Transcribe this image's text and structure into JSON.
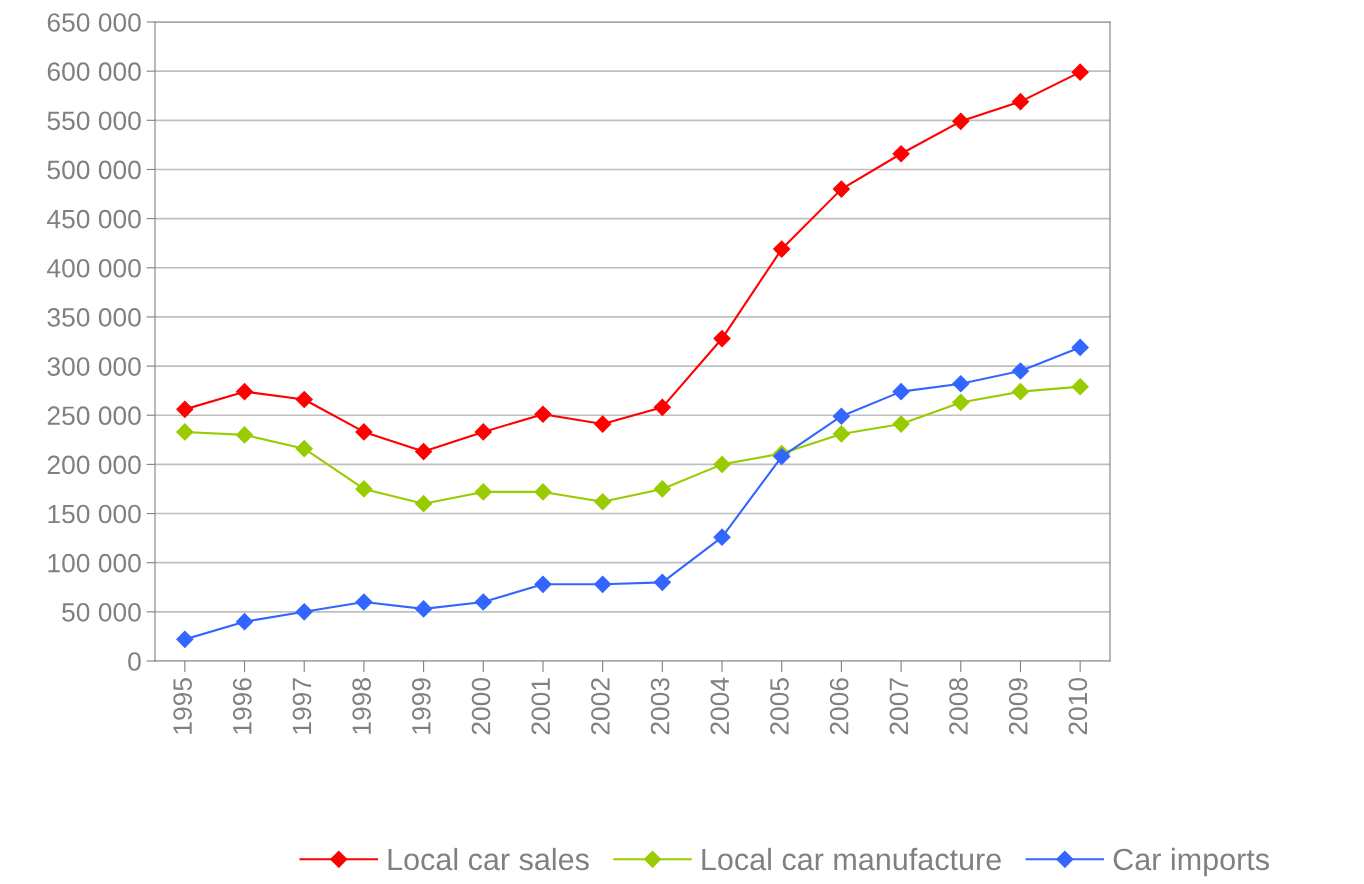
{
  "chart_data": {
    "type": "line",
    "categories": [
      "1995",
      "1996",
      "1997",
      "1998",
      "1999",
      "2000",
      "2001",
      "2002",
      "2003",
      "2004",
      "2005",
      "2006",
      "2007",
      "2008",
      "2009",
      "2010"
    ],
    "series": [
      {
        "name": "Local car sales",
        "color": "#ff0000",
        "values": [
          256000,
          274000,
          266000,
          233000,
          213000,
          233000,
          251000,
          241000,
          258000,
          328000,
          419000,
          480000,
          516000,
          549000,
          569000,
          599000
        ]
      },
      {
        "name": "Local car manufacture",
        "color": "#99cc00",
        "values": [
          233000,
          230000,
          216000,
          175000,
          160000,
          172000,
          172000,
          162000,
          175000,
          200000,
          211000,
          231000,
          241000,
          263000,
          274000,
          279000
        ]
      },
      {
        "name": "Car imports",
        "color": "#3366ff",
        "values": [
          22000,
          40000,
          50000,
          60000,
          53000,
          60000,
          78000,
          78000,
          80000,
          126000,
          208000,
          249000,
          274000,
          282000,
          295000,
          319000
        ]
      }
    ],
    "ylim": [
      0,
      650000
    ],
    "yticks": [
      0,
      {
        "value": 50000,
        "label": "50 000"
      },
      {
        "value": 100000,
        "label": "100 000"
      },
      {
        "value": 150000,
        "label": "150 000"
      },
      {
        "value": 200000,
        "label": "200 000"
      },
      {
        "value": 250000,
        "label": "250 000"
      },
      {
        "value": 300000,
        "label": "300 000"
      },
      {
        "value": 350000,
        "label": "350 000"
      },
      {
        "value": 400000,
        "label": "400 000"
      },
      {
        "value": 450000,
        "label": "450 000"
      },
      {
        "value": 500000,
        "label": "500 000"
      },
      {
        "value": 550000,
        "label": "550 000"
      },
      {
        "value": 600000,
        "label": "600 000"
      },
      {
        "value": 650000,
        "label": "650 000"
      }
    ],
    "grid": "y",
    "legend": "bottom",
    "marker": "diamond",
    "line_style": "solid"
  }
}
